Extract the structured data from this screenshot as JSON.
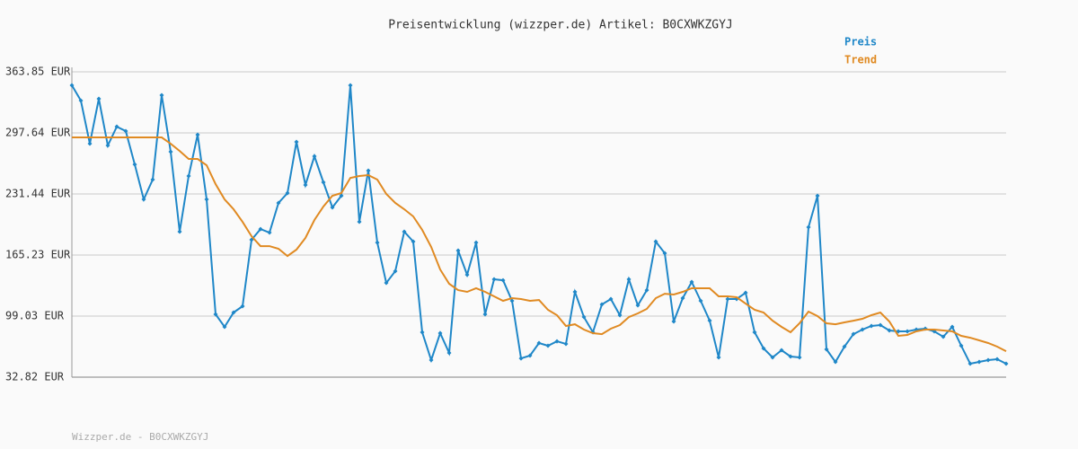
{
  "chart_data": {
    "type": "line",
    "title": "Preisentwicklung (wizzper.de) Artikel: B0CXWKZGYJ",
    "footer": "Wizzper.de - B0CXWKZGYJ",
    "ylim": [
      32.82,
      363.85
    ],
    "yticks": [
      {
        "value": 32.82,
        "label": "32.82 EUR"
      },
      {
        "value": 99.03,
        "label": "99.03 EUR"
      },
      {
        "value": 165.23,
        "label": "165.23 EUR"
      },
      {
        "value": 231.44,
        "label": "231.44 EUR"
      },
      {
        "value": 297.64,
        "label": "297.64 EUR"
      },
      {
        "value": 363.85,
        "label": "363.85 EUR"
      }
    ],
    "grid": true,
    "series": [
      {
        "name": "Preis",
        "color": "#1f87c8",
        "markers": true,
        "values": [
          349.2,
          332.7,
          285.9,
          334.6,
          284.0,
          304.4,
          299.6,
          263.5,
          225.6,
          247.0,
          338.5,
          277.2,
          190.5,
          250.9,
          295.7,
          225.6,
          101.0,
          87.3,
          102.9,
          109.7,
          181.8,
          193.4,
          189.6,
          221.7,
          232.4,
          287.9,
          241.2,
          272.3,
          244.1,
          216.8,
          229.5,
          349.2,
          201.2,
          256.7,
          178.8,
          135.0,
          147.7,
          190.5,
          179.8,
          81.5,
          51.3,
          80.5,
          59.1,
          170.1,
          143.8,
          178.8,
          101.0,
          138.9,
          137.9,
          115.6,
          53.2,
          56.2,
          69.8,
          66.9,
          71.7,
          68.8,
          125.3,
          98.0,
          81.5,
          111.7,
          117.5,
          100.0,
          138.9,
          110.7,
          127.2,
          179.8,
          167.2,
          93.2,
          118.5,
          136.0,
          115.6,
          94.1,
          54.2,
          117.5,
          117.5,
          124.3,
          81.5,
          64.0,
          54.2,
          62.0,
          55.2,
          54.2,
          195.4,
          229.5,
          63.0,
          49.4,
          65.9,
          79.5,
          84.4,
          88.3,
          89.3,
          83.4,
          82.5,
          82.5,
          84.4,
          85.4,
          82.5,
          76.6,
          87.3,
          66.9,
          47.4,
          49.4,
          51.3,
          52.3,
          47.4
        ]
      },
      {
        "name": "Trend",
        "color": "#e08a22",
        "markers": false,
        "values": [
          292.8,
          292.8,
          292.8,
          292.8,
          292.8,
          292.8,
          292.8,
          292.8,
          292.8,
          292.8,
          292.8,
          285.9,
          278.1,
          269.4,
          269.4,
          262.6,
          242.1,
          225.6,
          214.9,
          201.2,
          185.7,
          174.9,
          174.9,
          172.0,
          164.2,
          171.1,
          183.7,
          203.2,
          217.8,
          229.5,
          232.4,
          248.9,
          250.9,
          251.9,
          247.0,
          231.4,
          221.7,
          214.9,
          207.1,
          192.5,
          174.0,
          149.6,
          134.1,
          127.2,
          125.3,
          129.2,
          125.3,
          120.4,
          115.6,
          118.5,
          117.5,
          115.6,
          116.5,
          105.8,
          100.0,
          88.3,
          90.2,
          84.4,
          80.5,
          79.5,
          85.4,
          89.3,
          98.0,
          101.9,
          106.8,
          118.5,
          123.3,
          122.4,
          125.3,
          129.2,
          129.2,
          129.2,
          120.4,
          120.4,
          119.5,
          112.6,
          105.8,
          102.9,
          94.1,
          87.3,
          81.5,
          91.2,
          103.9,
          99.0,
          91.2,
          90.2,
          92.2,
          94.1,
          96.1,
          100.0,
          102.9,
          93.2,
          77.6,
          78.6,
          82.5,
          84.4,
          84.4,
          83.4,
          82.5,
          77.6,
          75.6,
          72.7,
          69.8,
          65.9,
          61.0
        ]
      }
    ]
  }
}
